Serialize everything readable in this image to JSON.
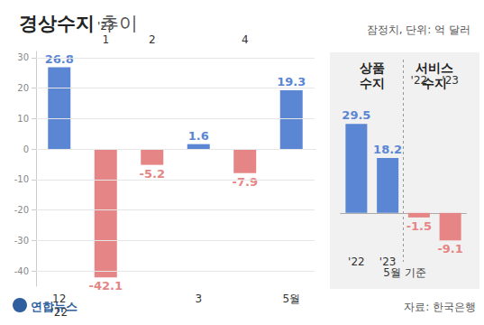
{
  "chart_data": [
    {
      "type": "bar",
      "title": "경상수지 추이",
      "subtitle": "잠정치, 단위: 억 달러",
      "categories": [
        "12\n'22",
        "'23\n1",
        "2",
        "3",
        "4",
        "5월"
      ],
      "values": [
        26.8,
        -42.1,
        -5.2,
        1.6,
        -7.9,
        19.3
      ],
      "colors": [
        "#5b86d3",
        "#e58585",
        "#e58585",
        "#5b86d3",
        "#e58585",
        "#5b86d3"
      ],
      "ylim": [
        -45,
        32
      ],
      "yticks": [
        -40,
        -30,
        -20,
        -10,
        0,
        10,
        20,
        30
      ],
      "grid": true,
      "data_labels": true,
      "source": "자료: 한국은행",
      "credit": "연합뉴스"
    },
    {
      "type": "bar",
      "categories": [
        "'22",
        "'23",
        "'22",
        "'23"
      ],
      "group_labels": [
        "상품\n수지",
        "서비스\n수지"
      ],
      "values": [
        29.5,
        18.2,
        -1.5,
        -9.1
      ],
      "colors": [
        "#5b86d3",
        "#5b86d3",
        "#e58585",
        "#e58585"
      ],
      "ylim": [
        -12,
        40
      ],
      "data_labels": true,
      "tick_labels": "x",
      "annotations": [
        "5월 기준"
      ]
    }
  ]
}
